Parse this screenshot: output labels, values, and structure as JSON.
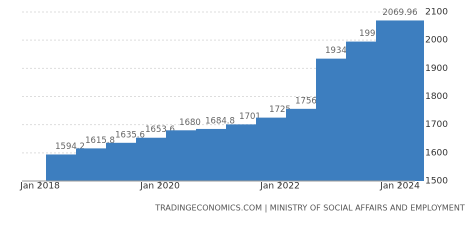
{
  "chart_data": {
    "type": "bar",
    "x": [
      2018.5,
      2019,
      2019.5,
      2020,
      2020.5,
      2021,
      2021.5,
      2022,
      2022.5,
      2023,
      2023.5,
      2024
    ],
    "values": [
      1594.2,
      1615.8,
      1635.6,
      1653.6,
      1680,
      1684.8,
      1701,
      1725,
      1756.2,
      1934.4,
      1995,
      2069.96
    ],
    "color": "#3d7ebf",
    "xlim": [
      2017.7,
      2024.25
    ],
    "xticks": [
      {
        "value": 2018,
        "label": "Jan 2018"
      },
      {
        "value": 2020,
        "label": "Jan 2020"
      },
      {
        "value": 2022,
        "label": "Jan 2022"
      },
      {
        "value": 2024,
        "label": "Jan 2024"
      }
    ],
    "ylim": [
      1500,
      2100
    ],
    "yticks": [
      1500,
      1600,
      1700,
      1800,
      1900,
      2000,
      2100
    ],
    "grid": true,
    "source": "TRADINGECONOMICS.COM | MINISTRY OF SOCIAL AFFAIRS AND EMPLOYMENT"
  }
}
